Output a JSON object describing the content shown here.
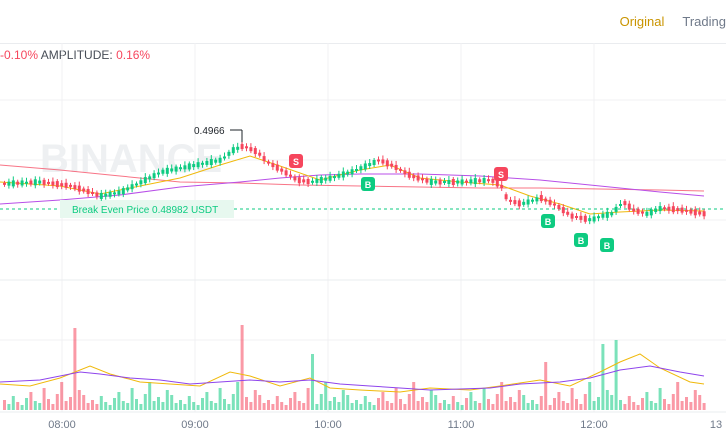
{
  "header": {
    "tabs": [
      {
        "label": "Original",
        "active": true
      },
      {
        "label": "Trading",
        "active": false
      }
    ]
  },
  "stats": {
    "change_value": "-0.10%",
    "amplitude_label": "AMPLITUDE:",
    "amplitude_value": "0.16%"
  },
  "chart": {
    "watermark": "BINANCE",
    "high_marker": "0.4966",
    "break_even_label": "Break Even Price 0.48982 USDT",
    "trade_markers": [
      {
        "label": "S",
        "side": "sell"
      },
      {
        "label": "B",
        "side": "buy"
      },
      {
        "label": "S",
        "side": "sell"
      },
      {
        "label": "B",
        "side": "buy"
      },
      {
        "label": "B",
        "side": "buy"
      },
      {
        "label": "B",
        "side": "buy"
      }
    ],
    "time_labels": [
      "08:00",
      "09:00",
      "10:00",
      "11:00",
      "12:00",
      "13"
    ]
  },
  "colors": {
    "up": "#0ecb81",
    "down": "#f6465d",
    "ma_yellow": "#f0b90b",
    "ma_purple": "#a020f0",
    "accent": "#c99400"
  }
}
